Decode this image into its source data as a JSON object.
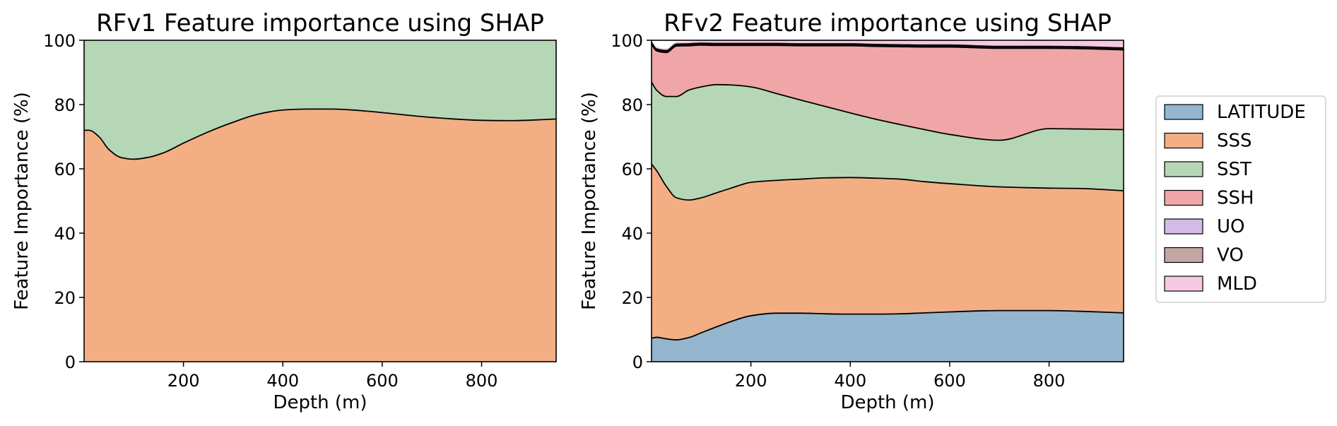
{
  "chart_data": [
    {
      "type": "area",
      "stacked": true,
      "title": "RFv1 Feature importance using SHAP",
      "xlabel": "Depth (m)",
      "ylabel": "Feature Importance (%)",
      "xlim": [
        0,
        950
      ],
      "ylim": [
        0,
        100
      ],
      "xticks": [
        200,
        400,
        600,
        800
      ],
      "yticks": [
        0,
        20,
        40,
        60,
        80,
        100
      ],
      "x": [
        0,
        10,
        30,
        50,
        75,
        100,
        130,
        160,
        200,
        250,
        300,
        350,
        400,
        450,
        500,
        550,
        600,
        700,
        800,
        860,
        950
      ],
      "series": [
        {
          "name": "SSS",
          "color": "#f4ae84",
          "values": [
            72,
            72,
            70,
            66,
            63.5,
            63,
            63.6,
            65,
            68,
            71.5,
            74.5,
            77,
            78.3,
            78.6,
            78.6,
            78.2,
            77.5,
            76,
            75.1,
            75,
            75.5
          ]
        },
        {
          "name": "SST",
          "color": "#b5d7b5",
          "values": [
            28,
            28,
            30,
            34,
            36.5,
            37,
            36.4,
            35,
            32,
            28.5,
            25.5,
            23,
            21.7,
            21.4,
            21.4,
            21.8,
            22.5,
            24,
            24.9,
            25,
            24.5
          ]
        }
      ]
    },
    {
      "type": "area",
      "stacked": true,
      "title": "RFv2 Feature importance using SHAP",
      "xlabel": "Depth (m)",
      "ylabel": "Feature Importance (%)",
      "xlim": [
        0,
        950
      ],
      "ylim": [
        0,
        100
      ],
      "xticks": [
        200,
        400,
        600,
        800
      ],
      "yticks": [
        0,
        20,
        40,
        60,
        80,
        100
      ],
      "x": [
        0,
        10,
        30,
        50,
        75,
        100,
        130,
        160,
        200,
        250,
        300,
        350,
        400,
        450,
        500,
        550,
        600,
        700,
        800,
        860,
        950
      ],
      "series": [
        {
          "name": "LATITUDE",
          "color": "#94b6ce",
          "values": [
            7.3,
            7.6,
            7.1,
            6.8,
            7.5,
            9,
            10.8,
            12.5,
            14.3,
            15.1,
            15.1,
            14.9,
            14.8,
            14.8,
            14.9,
            15.2,
            15.5,
            15.9,
            15.9,
            15.7,
            15.2
          ]
        },
        {
          "name": "SSS",
          "color": "#f4ae84",
          "values": [
            54.2,
            51.9,
            47.4,
            44.2,
            42.8,
            42,
            41.7,
            41.5,
            41.5,
            41.3,
            41.7,
            42.3,
            42.5,
            42.3,
            41.9,
            40.8,
            39.9,
            38.5,
            38.1,
            38.2,
            38.0
          ]
        },
        {
          "name": "SST",
          "color": "#b5d7b5",
          "values": [
            25.5,
            25.0,
            28.0,
            31.5,
            34.2,
            34.5,
            33.7,
            32.1,
            29.7,
            27.1,
            24.6,
            22.2,
            20.1,
            18.4,
            17,
            16.2,
            15.3,
            14.5,
            18.5,
            18.5,
            19.0
          ]
        },
        {
          "name": "SSH",
          "color": "#f0a6a6",
          "values": [
            11.7,
            12.2,
            13.7,
            15.7,
            13.8,
            13,
            12.2,
            12.3,
            12.9,
            14.9,
            16.9,
            18.9,
            20.9,
            22.6,
            24.2,
            25.7,
            27.2,
            28.6,
            25.0,
            25.0,
            24.8
          ]
        },
        {
          "name": "UO",
          "color": "#d4bbe6",
          "values": [
            0.2,
            0.2,
            0.2,
            0.2,
            0.2,
            0.2,
            0.2,
            0.2,
            0.2,
            0.2,
            0.2,
            0.2,
            0.2,
            0.2,
            0.2,
            0.2,
            0.2,
            0.2,
            0.2,
            0.2,
            0.2
          ]
        },
        {
          "name": "VO",
          "color": "#c4a6a3",
          "values": [
            0.4,
            0.4,
            0.4,
            0.4,
            0.4,
            0.4,
            0.4,
            0.4,
            0.4,
            0.4,
            0.4,
            0.4,
            0.4,
            0.4,
            0.4,
            0.4,
            0.4,
            0.4,
            0.4,
            0.4,
            0.4
          ]
        },
        {
          "name": "MLD",
          "color": "#f7c8e2",
          "values": [
            0.7,
            0.7,
            0.7,
            0.7,
            0.7,
            0.7,
            0.8,
            0.8,
            0.9,
            0.9,
            1.0,
            1.0,
            1.1,
            1.2,
            1.3,
            1.4,
            1.4,
            1.6,
            1.8,
            1.9,
            2.2
          ]
        }
      ]
    }
  ],
  "legend": {
    "items": [
      {
        "label": "LATITUDE",
        "color": "#94b6ce"
      },
      {
        "label": "SSS",
        "color": "#f4ae84"
      },
      {
        "label": "SST",
        "color": "#b5d7b5"
      },
      {
        "label": "SSH",
        "color": "#f0a6a6"
      },
      {
        "label": "UO",
        "color": "#d4bbe6"
      },
      {
        "label": "VO",
        "color": "#c4a6a3"
      },
      {
        "label": "MLD",
        "color": "#f7c8e2"
      }
    ]
  }
}
